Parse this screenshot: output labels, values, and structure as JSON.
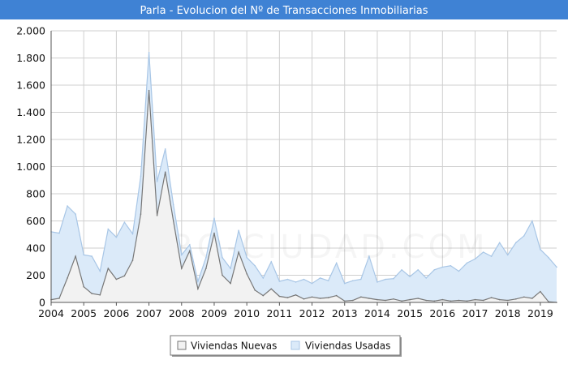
{
  "chart_data": {
    "type": "area",
    "title": "Parla - Evolucion del Nº de Transacciones Inmobiliarias",
    "watermark": "FORO-CIUDAD.COM",
    "xlabel": "",
    "ylabel": "",
    "xlim": [
      2004,
      2019.5
    ],
    "ylim": [
      0,
      2000
    ],
    "x_ticks": [
      {
        "value": 2004,
        "label": "2004"
      },
      {
        "value": 2005,
        "label": "2005"
      },
      {
        "value": 2006,
        "label": "2006"
      },
      {
        "value": 2007,
        "label": "2007"
      },
      {
        "value": 2008,
        "label": "2008"
      },
      {
        "value": 2009,
        "label": "2009"
      },
      {
        "value": 2010,
        "label": "2010"
      },
      {
        "value": 2011,
        "label": "2011"
      },
      {
        "value": 2012,
        "label": "2012"
      },
      {
        "value": 2013,
        "label": "2013"
      },
      {
        "value": 2014,
        "label": "2014"
      },
      {
        "value": 2015,
        "label": "2015"
      },
      {
        "value": 2016,
        "label": "2016"
      },
      {
        "value": 2017,
        "label": "2017"
      },
      {
        "value": 2018,
        "label": "2018"
      },
      {
        "value": 2019,
        "label": "2019"
      }
    ],
    "y_ticks": [
      {
        "value": 0,
        "label": "0"
      },
      {
        "value": 200,
        "label": "200"
      },
      {
        "value": 400,
        "label": "400"
      },
      {
        "value": 600,
        "label": "600"
      },
      {
        "value": 800,
        "label": "800"
      },
      {
        "value": 1000,
        "label": "1.000"
      },
      {
        "value": 1200,
        "label": "1.200"
      },
      {
        "value": 1400,
        "label": "1.400"
      },
      {
        "value": 1600,
        "label": "1.600"
      },
      {
        "value": 1800,
        "label": "1.800"
      },
      {
        "value": 2000,
        "label": "2.000"
      }
    ],
    "grid": true,
    "legend_position": "bottom-center",
    "x": [
      2004.0,
      2004.25,
      2004.5,
      2004.75,
      2005.0,
      2005.25,
      2005.5,
      2005.75,
      2006.0,
      2006.25,
      2006.5,
      2006.75,
      2007.0,
      2007.25,
      2007.5,
      2007.75,
      2008.0,
      2008.25,
      2008.5,
      2008.75,
      2009.0,
      2009.25,
      2009.5,
      2009.75,
      2010.0,
      2010.25,
      2010.5,
      2010.75,
      2011.0,
      2011.25,
      2011.5,
      2011.75,
      2012.0,
      2012.25,
      2012.5,
      2012.75,
      2013.0,
      2013.25,
      2013.5,
      2013.75,
      2014.0,
      2014.25,
      2014.5,
      2014.75,
      2015.0,
      2015.25,
      2015.5,
      2015.75,
      2016.0,
      2016.25,
      2016.5,
      2016.75,
      2017.0,
      2017.25,
      2017.5,
      2017.75,
      2018.0,
      2018.25,
      2018.5,
      2018.75,
      2019.0,
      2019.25,
      2019.5
    ],
    "series": [
      {
        "name": "Viviendas Nuevas",
        "fill": "#f2f2f2",
        "stroke": "#777777",
        "values": [
          20,
          30,
          180,
          340,
          115,
          65,
          55,
          250,
          170,
          195,
          310,
          650,
          1560,
          640,
          960,
          600,
          250,
          380,
          100,
          250,
          510,
          200,
          140,
          370,
          210,
          90,
          50,
          100,
          45,
          35,
          55,
          25,
          40,
          30,
          35,
          50,
          10,
          15,
          40,
          30,
          20,
          15,
          25,
          10,
          20,
          30,
          15,
          10,
          20,
          10,
          15,
          10,
          20,
          15,
          35,
          20,
          15,
          25,
          40,
          30,
          80,
          5,
          0
        ]
      },
      {
        "name": "Viviendas Usadas",
        "fill": "#dbeaf9",
        "stroke": "#a8c6e6",
        "values": [
          520,
          510,
          710,
          650,
          350,
          340,
          230,
          540,
          480,
          590,
          505,
          930,
          1840,
          890,
          1130,
          720,
          350,
          425,
          155,
          330,
          620,
          330,
          250,
          530,
          330,
          270,
          180,
          300,
          155,
          170,
          150,
          170,
          140,
          180,
          160,
          290,
          140,
          160,
          170,
          340,
          150,
          170,
          175,
          240,
          190,
          240,
          180,
          240,
          260,
          270,
          230,
          290,
          320,
          370,
          340,
          440,
          350,
          440,
          490,
          600,
          390,
          330,
          260
        ]
      }
    ],
    "legend": [
      {
        "label": "Viviendas Nuevas",
        "fill": "#f2f2f2",
        "stroke": "#777777"
      },
      {
        "label": "Viviendas Usadas",
        "fill": "#dbeaf9",
        "stroke": "#a8c6e6"
      }
    ],
    "colors": {
      "title_bar": "#3f82d4",
      "grid": "#cfcfcf",
      "axis": "#555555",
      "title_text": "#ffffff"
    }
  }
}
